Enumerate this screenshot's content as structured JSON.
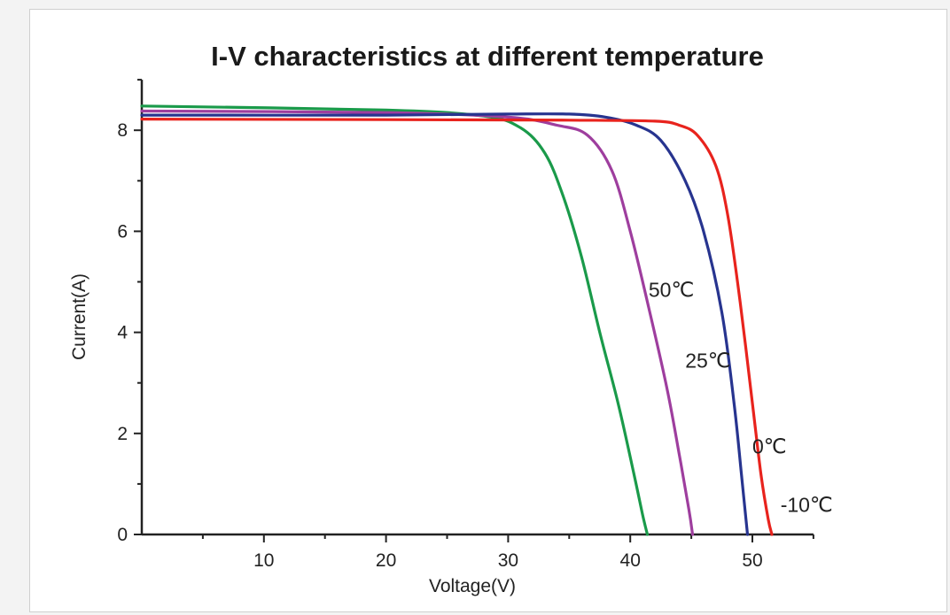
{
  "chart_data": {
    "type": "line",
    "title": "I-V characteristics at different temperature",
    "xlabel": "Voltage(V)",
    "ylabel": "Current(A)",
    "xlim": [
      0,
      55
    ],
    "ylim": [
      0,
      9
    ],
    "x_ticks": [
      10,
      20,
      30,
      40,
      50
    ],
    "y_ticks": [
      0,
      2,
      4,
      6,
      8
    ],
    "grid": false,
    "series": [
      {
        "name": "-10℃",
        "color": "#e8231d",
        "points": [
          [
            0,
            8.22
          ],
          [
            20,
            8.21
          ],
          [
            35,
            8.2
          ],
          [
            42,
            8.18
          ],
          [
            44,
            8.1
          ],
          [
            45.5,
            7.9
          ],
          [
            47,
            7.3
          ],
          [
            48,
            6.3
          ],
          [
            49,
            4.6
          ],
          [
            50,
            2.6
          ],
          [
            50.7,
            1.2
          ],
          [
            51.3,
            0.3
          ],
          [
            51.6,
            0
          ]
        ]
      },
      {
        "name": "0℃",
        "color": "#27348f",
        "points": [
          [
            0,
            8.3
          ],
          [
            20,
            8.3
          ],
          [
            30,
            8.32
          ],
          [
            35,
            8.32
          ],
          [
            38,
            8.26
          ],
          [
            40.5,
            8.1
          ],
          [
            42.5,
            7.8
          ],
          [
            44.5,
            7.0
          ],
          [
            46,
            6.0
          ],
          [
            47.5,
            4.4
          ],
          [
            48.5,
            2.6
          ],
          [
            49.1,
            1.2
          ],
          [
            49.6,
            0
          ]
        ]
      },
      {
        "name": "25℃",
        "color": "#9e3e9e",
        "points": [
          [
            0,
            8.38
          ],
          [
            20,
            8.35
          ],
          [
            30,
            8.26
          ],
          [
            34,
            8.1
          ],
          [
            36.5,
            7.9
          ],
          [
            38.5,
            7.2
          ],
          [
            40,
            6.0
          ],
          [
            41.5,
            4.5
          ],
          [
            43,
            2.9
          ],
          [
            44,
            1.6
          ],
          [
            44.8,
            0.5
          ],
          [
            45.1,
            0
          ]
        ]
      },
      {
        "name": "50℃",
        "color": "#1a9a4a",
        "points": [
          [
            0,
            8.48
          ],
          [
            20,
            8.4
          ],
          [
            28,
            8.28
          ],
          [
            31,
            8.05
          ],
          [
            33,
            7.55
          ],
          [
            34.5,
            6.7
          ],
          [
            36,
            5.5
          ],
          [
            37.5,
            4.0
          ],
          [
            39,
            2.6
          ],
          [
            40.3,
            1.2
          ],
          [
            41,
            0.4
          ],
          [
            41.4,
            0
          ]
        ]
      }
    ],
    "annotations": [
      {
        "text": "50℃",
        "x": 41.5,
        "y": 4.7
      },
      {
        "text": "25℃",
        "x": 44.5,
        "y": 3.3
      },
      {
        "text": "0℃",
        "x": 50.0,
        "y": 1.6
      },
      {
        "text": "-10℃",
        "x": 52.3,
        "y": 0.45
      }
    ]
  }
}
